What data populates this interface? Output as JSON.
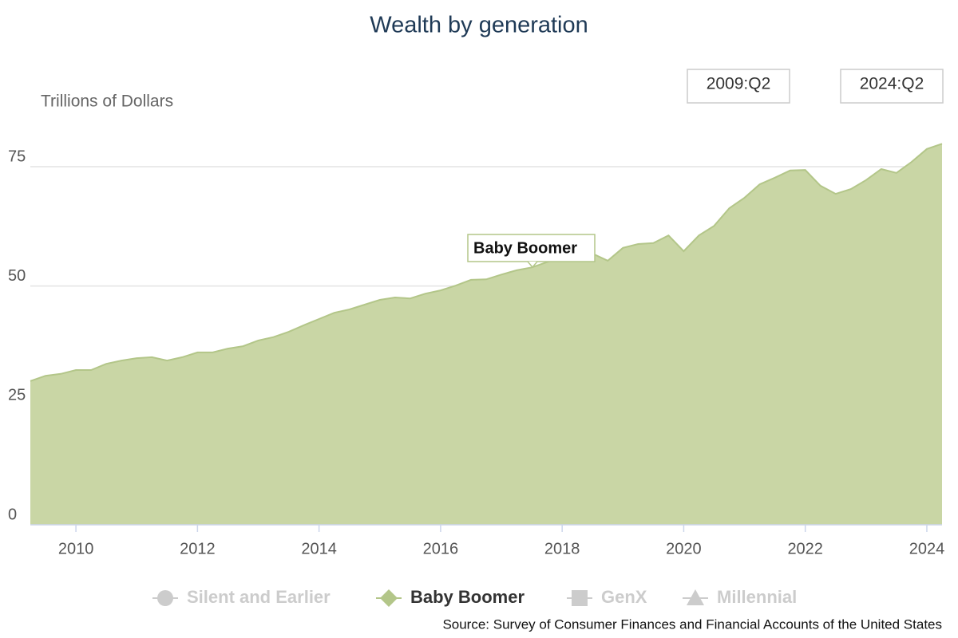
{
  "chart_data": {
    "type": "area",
    "title": "Wealth by generation",
    "y_label": "Trillions of Dollars",
    "range_start": "2009:Q2",
    "range_end": "2024:Q2",
    "source": "Source: Survey of Consumer Finances and Financial Accounts of the United States",
    "x": [
      2009.25,
      2009.5,
      2009.75,
      2010,
      2010.25,
      2010.5,
      2010.75,
      2011,
      2011.25,
      2011.5,
      2011.75,
      2012,
      2012.25,
      2012.5,
      2012.75,
      2013,
      2013.25,
      2013.5,
      2013.75,
      2014,
      2014.25,
      2014.5,
      2014.75,
      2015,
      2015.25,
      2015.5,
      2015.75,
      2016,
      2016.25,
      2016.5,
      2016.75,
      2017,
      2017.25,
      2017.5,
      2017.75,
      2018,
      2018.25,
      2018.5,
      2018.75,
      2019,
      2019.25,
      2019.5,
      2019.75,
      2020,
      2020.25,
      2020.5,
      2020.75,
      2021,
      2021.25,
      2021.5,
      2021.75,
      2022,
      2022.25,
      2022.5,
      2022.75,
      2023,
      2023.25,
      2023.5,
      2023.75,
      2024,
      2024.25
    ],
    "series": [
      {
        "name": "Baby Boomer",
        "color": "#c9d6a5",
        "line_color": "#b3c689",
        "values": [
          30.1,
          31.2,
          31.6,
          32.4,
          32.4,
          33.7,
          34.4,
          34.9,
          35.1,
          34.4,
          35.1,
          36.1,
          36.1,
          36.9,
          37.4,
          38.6,
          39.3,
          40.4,
          41.8,
          43.1,
          44.4,
          45.1,
          46.1,
          47.1,
          47.6,
          47.4,
          48.4,
          49.1,
          50.1,
          51.3,
          51.4,
          52.4,
          53.3,
          53.9,
          55.0,
          56.0,
          56.8,
          56.8,
          55.3,
          58.0,
          58.8,
          59.0,
          60.6,
          57.3,
          60.6,
          62.6,
          66.3,
          68.5,
          71.3,
          72.7,
          74.2,
          74.3,
          71.0,
          69.3,
          70.3,
          72.2,
          74.5,
          73.7,
          76.0,
          78.7,
          79.8
        ]
      }
    ],
    "legend": [
      {
        "name": "Silent and Earlier",
        "marker": "circle",
        "visible": false
      },
      {
        "name": "Baby Boomer",
        "marker": "diamond",
        "visible": true
      },
      {
        "name": "GenX",
        "marker": "square",
        "visible": false
      },
      {
        "name": "Millennial",
        "marker": "triangle",
        "visible": false
      }
    ],
    "xlim": [
      2009.25,
      2024.25
    ],
    "xticks": [
      2010,
      2012,
      2014,
      2016,
      2018,
      2020,
      2022,
      2024
    ],
    "ylim": [
      0,
      83
    ],
    "yticks": [
      0,
      25,
      50,
      75
    ],
    "grid": true
  }
}
